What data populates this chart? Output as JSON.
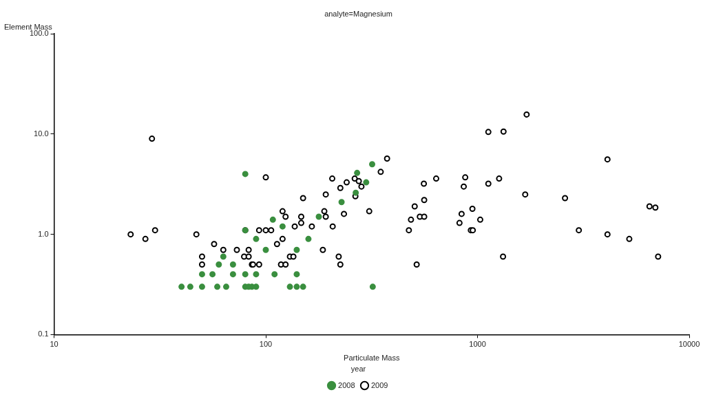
{
  "chart_data": {
    "type": "scatter",
    "title": "analyte=Magnesium",
    "xlabel": "Particulate Mass",
    "ylabel": "Element Mass",
    "legend_title": "year",
    "log": "xy",
    "xlim": [
      10,
      10000
    ],
    "ylim": [
      0.1,
      100
    ],
    "xticks": [
      10,
      100,
      1000,
      10000
    ],
    "yticks": [
      {
        "value": 0.1,
        "label": "0.1"
      },
      {
        "value": 1,
        "label": "1.0"
      },
      {
        "value": 10,
        "label": "10.0"
      },
      {
        "value": 100,
        "label": "100.0"
      }
    ],
    "grid": false,
    "legend": "bottom",
    "marker": "circle",
    "series": [
      {
        "name": "2008",
        "color": "#3a8f3f",
        "x": [
          318,
          270,
          298,
          266,
          228,
          178,
          108,
          120,
          80,
          90,
          159,
          100,
          140,
          63,
          60,
          70,
          50,
          56,
          70,
          80,
          90,
          110,
          140,
          40,
          44,
          50,
          59,
          65,
          80,
          83,
          86,
          90,
          130,
          140,
          150,
          320,
          80
        ],
        "values": [
          5.0,
          4.1,
          3.3,
          2.6,
          2.1,
          1.5,
          1.4,
          1.2,
          1.1,
          0.9,
          0.9,
          0.7,
          0.7,
          0.6,
          0.5,
          0.5,
          0.4,
          0.4,
          0.4,
          0.4,
          0.4,
          0.4,
          0.4,
          0.3,
          0.3,
          0.3,
          0.3,
          0.3,
          0.3,
          0.3,
          0.3,
          0.3,
          0.3,
          0.3,
          0.3,
          0.3,
          4.0
        ]
      },
      {
        "name": "2009",
        "color": "#000000",
        "x": [
          23,
          27,
          30,
          29,
          47,
          57,
          63,
          73,
          83,
          50,
          50,
          79,
          83,
          86,
          80,
          100,
          374,
          349,
          206,
          241,
          225,
          263,
          275,
          283,
          265,
          192,
          150,
          308,
          234,
          189,
          192,
          120,
          124,
          147,
          147,
          137,
          165,
          207,
          93,
          100,
          106,
          120,
          113,
          130,
          135,
          87,
          93,
          118,
          124,
          186,
          221,
          225,
          1706,
          1125,
          1327,
          4110,
          558,
          638,
          875,
          861,
          1125,
          1265,
          1680,
          2590,
          6490,
          6920,
          560,
          505,
          485,
          534,
          560,
          474,
          946,
          841,
          822,
          1030,
          930,
          950,
          3010,
          4110,
          5210,
          7130,
          1320,
          516
        ],
        "values": [
          1.0,
          0.9,
          1.1,
          9.0,
          1.0,
          0.8,
          0.7,
          0.7,
          0.7,
          0.6,
          0.5,
          0.6,
          0.6,
          0.5,
          1.1,
          3.7,
          5.7,
          4.2,
          3.6,
          3.3,
          2.9,
          3.6,
          3.4,
          3.0,
          2.4,
          2.5,
          2.3,
          1.7,
          1.6,
          1.7,
          1.5,
          1.7,
          1.5,
          1.5,
          1.3,
          1.2,
          1.2,
          1.2,
          1.1,
          1.1,
          1.1,
          0.9,
          0.8,
          0.6,
          0.6,
          0.5,
          0.5,
          0.5,
          0.5,
          0.7,
          0.6,
          0.5,
          15.7,
          10.5,
          10.6,
          5.6,
          3.2,
          3.6,
          3.7,
          3.0,
          3.2,
          3.6,
          2.5,
          2.3,
          1.9,
          1.85,
          2.2,
          1.9,
          1.4,
          1.5,
          1.5,
          1.1,
          1.8,
          1.6,
          1.3,
          1.4,
          1.1,
          1.1,
          1.1,
          1.0,
          0.9,
          0.6,
          0.6,
          0.5
        ]
      }
    ]
  }
}
